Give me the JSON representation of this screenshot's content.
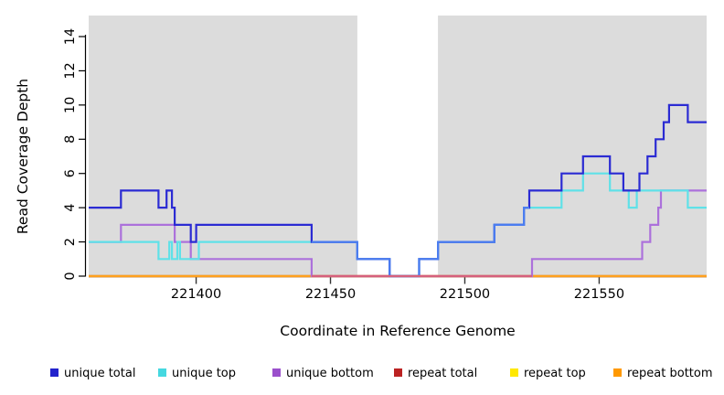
{
  "chart_data": {
    "type": "line",
    "subtype": "step-coverage-plot",
    "title": "",
    "xlabel": "Coordinate in Reference Genome",
    "ylabel": "Read Coverage Depth",
    "xlim": [
      221360,
      221590
    ],
    "ylim": [
      0,
      15.2
    ],
    "xticks": [
      221400,
      221450,
      221500,
      221550
    ],
    "yticks": [
      0,
      2,
      4,
      6,
      8,
      10,
      12,
      14
    ],
    "grid": "off",
    "panel_bg": "#dcdcdc",
    "outer_bg": "#ffffff",
    "masked_region": {
      "x0": 221460,
      "x1": 221490,
      "color": "#ffffff"
    },
    "series": [
      {
        "name": "repeat top",
        "color": "#ffe800",
        "points": [
          [
            221360,
            0
          ]
        ]
      },
      {
        "name": "repeat total",
        "color": "#bb2222",
        "points": [
          [
            221360,
            0
          ]
        ]
      },
      {
        "name": "repeat bottom",
        "color": "#ffa01e",
        "points": [
          [
            221360,
            0
          ]
        ]
      },
      {
        "name": "unique bottom",
        "color": "#ac71db",
        "points": [
          [
            221360,
            2
          ],
          [
            221372,
            3
          ],
          [
            221392,
            2
          ],
          [
            221398,
            1
          ],
          [
            221443,
            0
          ],
          [
            221525,
            1
          ],
          [
            221566,
            2
          ],
          [
            221569,
            3
          ],
          [
            221572,
            4
          ],
          [
            221573,
            5
          ]
        ]
      },
      {
        "name": "unique top",
        "color": "#5fe1e8",
        "points": [
          [
            221360,
            2
          ],
          [
            221386,
            1
          ],
          [
            221390,
            2
          ],
          [
            221391,
            1
          ],
          [
            221393,
            2
          ],
          [
            221394,
            1
          ],
          [
            221401,
            2
          ],
          [
            221460,
            1
          ],
          [
            221472,
            0
          ],
          [
            221483,
            1
          ],
          [
            221490,
            2
          ],
          [
            221511,
            3
          ],
          [
            221522,
            4
          ],
          [
            221536,
            5
          ],
          [
            221544,
            6
          ],
          [
            221554,
            5
          ],
          [
            221561,
            4
          ],
          [
            221564,
            5
          ],
          [
            221583,
            4
          ]
        ]
      },
      {
        "name": "unique total",
        "color": "#2b2bd3",
        "points": [
          [
            221360,
            4
          ],
          [
            221372,
            5
          ],
          [
            221386,
            4
          ],
          [
            221389,
            5
          ],
          [
            221391,
            4
          ],
          [
            221392,
            3
          ],
          [
            221398,
            2
          ],
          [
            221400,
            3
          ],
          [
            221443,
            2
          ],
          [
            221460,
            1
          ],
          [
            221472,
            0
          ],
          [
            221483,
            1
          ],
          [
            221490,
            2
          ],
          [
            221511,
            3
          ],
          [
            221522,
            4
          ],
          [
            221524,
            5
          ],
          [
            221536,
            6
          ],
          [
            221544,
            7
          ],
          [
            221554,
            6
          ],
          [
            221559,
            5
          ],
          [
            221565,
            6
          ],
          [
            221568,
            7
          ],
          [
            221571,
            8
          ],
          [
            221574,
            9
          ],
          [
            221576,
            10
          ],
          [
            221583,
            9
          ]
        ]
      }
    ],
    "overlap_artifacts": [
      {
        "name": "unique total over unique top",
        "color": "#4b7df0",
        "x_end": 221524,
        "points": [
          [
            221443,
            2
          ],
          [
            221460,
            1
          ],
          [
            221472,
            0
          ],
          [
            221483,
            1
          ],
          [
            221490,
            2
          ],
          [
            221511,
            3
          ],
          [
            221522,
            4
          ]
        ]
      },
      {
        "name": "unique bottom over repeat total at zero",
        "color": "#d6607d",
        "x_end": 221525,
        "points": [
          [
            221443,
            0
          ]
        ]
      }
    ],
    "legend": [
      {
        "label": "unique total",
        "color": "#2222cc"
      },
      {
        "label": "unique top",
        "color": "#45d8e0"
      },
      {
        "label": "unique bottom",
        "color": "#9b50cc"
      },
      {
        "label": "repeat total",
        "color": "#bb2222"
      },
      {
        "label": "repeat top",
        "color": "#ffe800"
      },
      {
        "label": "repeat bottom",
        "color": "#ff9900"
      }
    ],
    "legend_position": "bottom"
  }
}
